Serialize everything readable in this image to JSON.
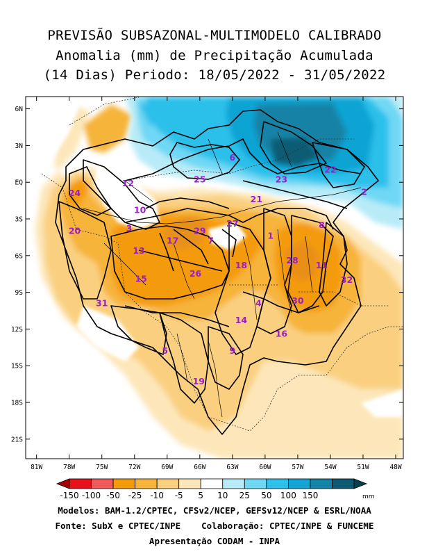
{
  "title": {
    "line1": "PREVISÃO SUBSAZONAL-MULTIMODELO CALIBRADO",
    "line2": "Anomalia (mm) de Precipitação Acumulada",
    "line3": "(14 Dias) Periodo: 18/05/2022 - 31/05/2022"
  },
  "map": {
    "lat_labels": [
      "6N",
      "3N",
      "EQ",
      "3S",
      "6S",
      "9S",
      "12S",
      "15S",
      "18S",
      "21S"
    ],
    "lon_labels": [
      "81W",
      "78W",
      "75W",
      "72W",
      "69W",
      "66W",
      "63W",
      "60W",
      "57W",
      "54W",
      "51W",
      "48W"
    ],
    "regions": [
      {
        "id": "6",
        "lon": -63.0,
        "lat": 2.0
      },
      {
        "id": "25",
        "lon": -66.0,
        "lat": 0.2
      },
      {
        "id": "23",
        "lon": -58.5,
        "lat": 0.2
      },
      {
        "id": "22",
        "lon": -54.0,
        "lat": 1.0
      },
      {
        "id": "2",
        "lon": -50.9,
        "lat": -0.8
      },
      {
        "id": "21",
        "lon": -60.8,
        "lat": -1.4
      },
      {
        "id": "12",
        "lon": -72.6,
        "lat": -0.1
      },
      {
        "id": "24",
        "lon": -77.5,
        "lat": -0.9
      },
      {
        "id": "10",
        "lon": -71.5,
        "lat": -2.3
      },
      {
        "id": "3",
        "lon": -72.5,
        "lat": -3.8
      },
      {
        "id": "20",
        "lon": -77.5,
        "lat": -4.0
      },
      {
        "id": "29",
        "lon": -66.0,
        "lat": -4.0
      },
      {
        "id": "27",
        "lon": -63.0,
        "lat": -3.4
      },
      {
        "id": "17",
        "lon": -68.5,
        "lat": -4.8
      },
      {
        "id": "7",
        "lon": -65.0,
        "lat": -4.8
      },
      {
        "id": "1",
        "lon": -59.5,
        "lat": -4.4
      },
      {
        "id": "8",
        "lon": -54.8,
        "lat": -3.5
      },
      {
        "id": "13",
        "lon": -71.6,
        "lat": -5.6
      },
      {
        "id": "28",
        "lon": -57.5,
        "lat": -6.4
      },
      {
        "id": "11",
        "lon": -54.8,
        "lat": -6.8
      },
      {
        "id": "18",
        "lon": -62.2,
        "lat": -6.8
      },
      {
        "id": "26",
        "lon": -66.4,
        "lat": -7.5
      },
      {
        "id": "15",
        "lon": -71.4,
        "lat": -7.9
      },
      {
        "id": "32",
        "lon": -52.5,
        "lat": -8.0
      },
      {
        "id": "31",
        "lon": -75.0,
        "lat": -9.9
      },
      {
        "id": "4",
        "lon": -60.6,
        "lat": -9.9
      },
      {
        "id": "30",
        "lon": -57.0,
        "lat": -9.7
      },
      {
        "id": "14",
        "lon": -62.2,
        "lat": -11.3
      },
      {
        "id": "16",
        "lon": -58.5,
        "lat": -12.4
      },
      {
        "id": "5",
        "lon": -69.2,
        "lat": -13.8
      },
      {
        "id": "9",
        "lon": -63.0,
        "lat": -13.8
      },
      {
        "id": "19",
        "lon": -66.1,
        "lat": -16.3
      }
    ]
  },
  "legend": {
    "labels": [
      "-150",
      "-100",
      "-50",
      "-25",
      "-10",
      "-5",
      "5",
      "10",
      "25",
      "50",
      "100",
      "150"
    ],
    "unit": "mm",
    "colors": [
      "#a60000",
      "#e8101a",
      "#f15a5a",
      "#f49b0b",
      "#f6b43b",
      "#fad080",
      "#fde7ba",
      "#ffffff",
      "#b8ebf7",
      "#6fd8f4",
      "#2cc0ea",
      "#11a4d4",
      "#1383a6",
      "#0c5b73",
      "#063f50"
    ]
  },
  "footer": {
    "line1": "Modelos: BAM-1.2/CPTEC, CFSv2/NCEP, GEFSv12/NCEP & ESRL/NOAA",
    "line2a": "Fonte: SubX e CPTEC/INPE",
    "line2b": "Colaboração: CPTEC/INPE & FUNCEME",
    "line3": "Apresentação CODAM - INPA"
  }
}
